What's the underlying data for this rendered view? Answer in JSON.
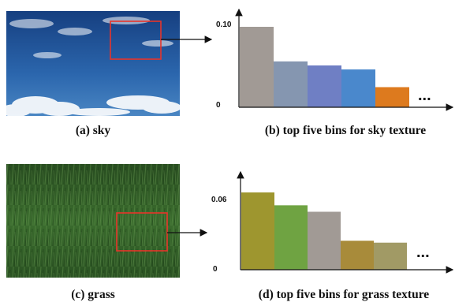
{
  "captions": {
    "sky_photo": "(a) sky",
    "sky_chart": "(b) top five bins for sky texture",
    "grass_photo": "(c) grass",
    "grass_chart": "(d) top five bins for grass texture"
  },
  "chart_data": [
    {
      "type": "bar",
      "title": "(b) top five bins for sky texture",
      "categories": [
        "",
        "",
        "",
        "",
        ""
      ],
      "values": [
        0.1,
        0.057,
        0.052,
        0.047,
        0.025
      ],
      "colors": [
        "#a19a95",
        "#8596b0",
        "#6f7fc4",
        "#4a88cc",
        "#dd7a1e"
      ],
      "ylim": [
        0,
        0.1
      ],
      "ytick_labels": [
        "0.10",
        "0"
      ],
      "ellipsis": "..."
    },
    {
      "type": "bar",
      "title": "(d) top five bins for grass texture",
      "categories": [
        "",
        "",
        "",
        "",
        ""
      ],
      "values": [
        0.06,
        0.05,
        0.045,
        0.0225,
        0.021
      ],
      "colors": [
        "#9e962f",
        "#6fa342",
        "#a19a95",
        "#a88b3a",
        "#a19a65"
      ],
      "ylim": [
        0,
        0.06
      ],
      "ytick_labels": [
        "0.06",
        "0"
      ],
      "ellipsis": "..."
    }
  ],
  "colors": {
    "selection_box": "#e8342a",
    "sky_top": "#1e4a8a",
    "grass": "#2f5a26"
  }
}
